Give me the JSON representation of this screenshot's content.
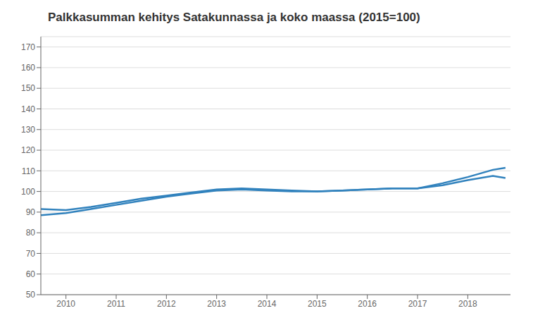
{
  "chart_data": {
    "type": "line",
    "title": "Palkkasumman kehitys Satakunnassa ja koko maassa (2015=100)",
    "x": [
      2009.5,
      2010.0,
      2010.5,
      2011.0,
      2011.5,
      2012.0,
      2012.5,
      2013.0,
      2013.5,
      2014.0,
      2014.5,
      2015.0,
      2015.5,
      2016.0,
      2016.5,
      2017.0,
      2017.5,
      2018.0,
      2018.5,
      2018.75
    ],
    "series": [
      {
        "values": [
          91.5,
          91.0,
          92.5,
          94.5,
          96.5,
          98.0,
          99.5,
          101.0,
          101.5,
          101.0,
          100.5,
          100.0,
          100.5,
          101.0,
          101.5,
          101.5,
          104.0,
          107.0,
          110.5,
          111.5
        ]
      },
      {
        "values": [
          88.5,
          89.5,
          91.5,
          93.5,
          95.5,
          97.5,
          99.0,
          100.5,
          101.0,
          100.5,
          100.0,
          100.0,
          100.5,
          101.0,
          101.5,
          101.5,
          103.0,
          105.5,
          107.5,
          106.5
        ]
      }
    ],
    "xlim": [
      2009.5,
      2018.85
    ],
    "xticks": [
      2010,
      2011,
      2012,
      2013,
      2014,
      2015,
      2016,
      2017,
      2018
    ],
    "ylim": [
      50,
      175
    ],
    "yticks": [
      50,
      60,
      70,
      80,
      90,
      100,
      110,
      120,
      130,
      140,
      150,
      160,
      170
    ],
    "grid": true
  }
}
